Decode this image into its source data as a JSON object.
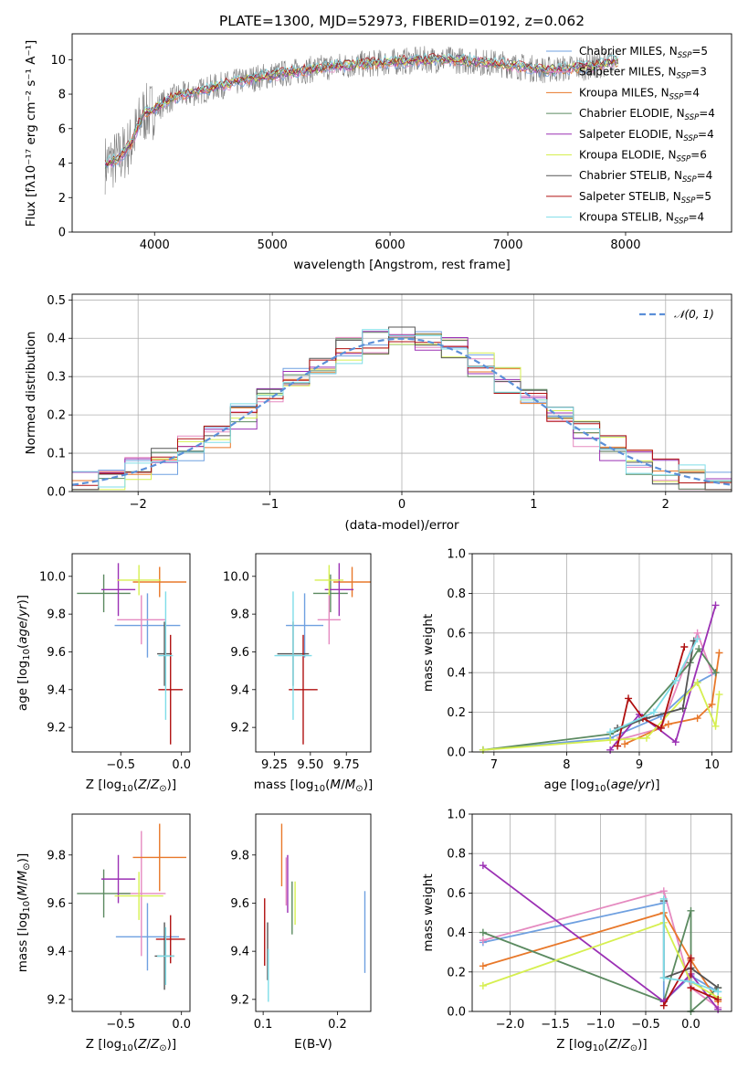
{
  "chart_data": [
    {
      "type": "line",
      "title": "PLATE=1300, MJD=52973, FIBERID=0192, z=0.062",
      "xlabel": "wavelength [Angstrom, rest frame]",
      "ylabel": "Flux [f$_\\lambda$10$^{-17}$ erg cm$^{-2}$ s$^{-1}$ A$^{-1}$]",
      "ylabel_text": "Flux [fλ10⁻¹⁷ erg cm⁻² s⁻¹ A⁻¹]",
      "xlim": [
        3300,
        8900
      ],
      "ylim": [
        0,
        11.5
      ],
      "xticks": [
        4000,
        5000,
        6000,
        7000,
        8000
      ],
      "yticks": [
        0,
        2,
        4,
        6,
        8,
        10
      ],
      "legend_position": "right",
      "legend": [
        {
          "name": "Chabrier MILES, N$_{SSP}$=5",
          "base": "Chabrier MILES, N",
          "sub": "SSP",
          "tail": "=5",
          "color": "#6fa0e0"
        },
        {
          "name": "Salpeter MILES, N$_{SSP}$=3",
          "base": "Salpeter MILES, N",
          "sub": "SSP",
          "tail": "=3",
          "color": "#e58ac0"
        },
        {
          "name": "Kroupa MILES, N$_{SSP}$=4",
          "base": "Kroupa MILES, N",
          "sub": "SSP",
          "tail": "=4",
          "color": "#e8782a"
        },
        {
          "name": "Chabrier ELODIE, N$_{SSP}$=4",
          "base": "Chabrier ELODIE, N",
          "sub": "SSP",
          "tail": "=4",
          "color": "#5b8a60"
        },
        {
          "name": "Salpeter ELODIE, N$_{SSP}$=4",
          "base": "Salpeter ELODIE, N",
          "sub": "SSP",
          "tail": "=4",
          "color": "#9b30b4"
        },
        {
          "name": "Kroupa ELODIE, N$_{SSP}$=6",
          "base": "Kroupa ELODIE, N",
          "sub": "SSP",
          "tail": "=6",
          "color": "#d6ef50"
        },
        {
          "name": "Chabrier STELIB, N$_{SSP}$=4",
          "base": "Chabrier STELIB, N",
          "sub": "SSP",
          "tail": "=4",
          "color": "#555555"
        },
        {
          "name": "Salpeter STELIB, N$_{SSP}$=5",
          "base": "Salpeter STELIB, N",
          "sub": "SSP",
          "tail": "=5",
          "color": "#b01010"
        },
        {
          "name": "Kroupa STELIB, N$_{SSP}$=4",
          "base": "Kroupa STELIB, N",
          "sub": "SSP",
          "tail": "=4",
          "color": "#7fdde8"
        }
      ],
      "spectrum_data": {
        "x": [
          3600,
          3700,
          3800,
          3900,
          4000,
          4100,
          4200,
          4300,
          4500,
          4700,
          4900,
          5100,
          5300,
          5500,
          5700,
          5900,
          6100,
          6300,
          6500,
          6700,
          6900,
          7100,
          7300,
          7500,
          7700,
          7900
        ],
        "y": [
          4.0,
          4.3,
          5.1,
          6.8,
          7.1,
          7.6,
          7.9,
          8.0,
          8.4,
          8.7,
          9.0,
          9.2,
          9.4,
          9.6,
          9.7,
          9.8,
          9.9,
          10.0,
          10.0,
          9.9,
          9.8,
          9.6,
          9.4,
          9.5,
          9.6,
          9.9
        ],
        "color": "#7f7f7f"
      }
    },
    {
      "type": "line",
      "xlabel": "(data-model)/error",
      "ylabel": "Normed distribution",
      "xlim": [
        -2.5,
        2.5
      ],
      "ylim": [
        0,
        0.515
      ],
      "xticks": [
        -2,
        -1,
        0,
        1,
        2
      ],
      "yticks": [
        0.0,
        0.1,
        0.2,
        0.3,
        0.4,
        0.5
      ],
      "grid": true,
      "legend_position": "top-right",
      "reference_series": {
        "name": "$\\mathcal{N}(0,1)$",
        "label_text": "𝒩(0, 1)",
        "color": "#5b8fd8",
        "style": "dashed"
      },
      "hist_bins": [
        -2.5,
        -2.3,
        -2.1,
        -1.9,
        -1.7,
        -1.5,
        -1.3,
        -1.1,
        -0.9,
        -0.7,
        -0.5,
        -0.3,
        -0.1,
        0.1,
        0.3,
        0.5,
        0.7,
        0.9,
        1.1,
        1.3,
        1.5,
        1.7,
        1.9,
        2.1,
        2.3,
        2.5
      ]
    },
    {
      "type": "scatter",
      "xlabel": "Z [log$_{10}$(Z/Z$_\\odot$)]",
      "ylabel": "age  [log$_{10}$(age/yr)]",
      "xlim": [
        -0.9,
        0.07
      ],
      "ylim": [
        9.07,
        10.12
      ],
      "xticks": [
        -0.5,
        0.0
      ],
      "xtick_labels": [
        "−0.5",
        "0.0"
      ],
      "yticks": [
        9.2,
        9.4,
        9.6,
        9.8,
        10.0
      ],
      "points": [
        {
          "x": -0.28,
          "y": 9.74,
          "xerr": 0.27,
          "yerr": 0.17,
          "color": "#6fa0e0"
        },
        {
          "x": -0.33,
          "y": 9.77,
          "xerr": 0.2,
          "yerr": 0.13,
          "color": "#e58ac0"
        },
        {
          "x": -0.18,
          "y": 9.97,
          "xerr": 0.22,
          "yerr": 0.08,
          "color": "#e8782a"
        },
        {
          "x": -0.64,
          "y": 9.91,
          "xerr": 0.22,
          "yerr": 0.1,
          "color": "#5b8a60"
        },
        {
          "x": -0.52,
          "y": 9.93,
          "xerr": 0.14,
          "yerr": 0.14,
          "color": "#9b30b4"
        },
        {
          "x": -0.35,
          "y": 9.98,
          "xerr": 0.18,
          "yerr": 0.08,
          "color": "#d6ef50"
        },
        {
          "x": -0.14,
          "y": 9.59,
          "xerr": 0.06,
          "yerr": 0.17,
          "color": "#555555"
        },
        {
          "x": -0.09,
          "y": 9.4,
          "xerr": 0.1,
          "yerr": 0.29,
          "color": "#b01010"
        },
        {
          "x": -0.13,
          "y": 9.58,
          "xerr": 0.06,
          "yerr": 0.34,
          "color": "#7fdde8"
        }
      ]
    },
    {
      "type": "scatter",
      "xlabel": "mass [log$_{10}$(M/M$_\\odot$)]",
      "ylabel": "",
      "xlim": [
        9.12,
        9.92
      ],
      "ylim": [
        9.07,
        10.12
      ],
      "xticks": [
        9.25,
        9.5,
        9.75
      ],
      "xtick_labels": [
        "9.25",
        "9.50",
        "9.75"
      ],
      "yticks": [
        9.2,
        9.4,
        9.6,
        9.8,
        10.0
      ],
      "points": [
        {
          "x": 9.46,
          "y": 9.74,
          "xerr": 0.13,
          "yerr": 0.17,
          "color": "#6fa0e0"
        },
        {
          "x": 9.63,
          "y": 9.77,
          "xerr": 0.08,
          "yerr": 0.13,
          "color": "#e58ac0"
        },
        {
          "x": 9.79,
          "y": 9.97,
          "xerr": 0.13,
          "yerr": 0.08,
          "color": "#e8782a"
        },
        {
          "x": 9.64,
          "y": 9.91,
          "xerr": 0.12,
          "yerr": 0.1,
          "color": "#5b8a60"
        },
        {
          "x": 9.7,
          "y": 9.93,
          "xerr": 0.1,
          "yerr": 0.14,
          "color": "#9b30b4"
        },
        {
          "x": 9.63,
          "y": 9.98,
          "xerr": 0.1,
          "yerr": 0.08,
          "color": "#d6ef50"
        },
        {
          "x": 9.38,
          "y": 9.59,
          "xerr": 0.11,
          "yerr": 0.17,
          "color": "#555555"
        },
        {
          "x": 9.45,
          "y": 9.4,
          "xerr": 0.1,
          "yerr": 0.29,
          "color": "#b01010"
        },
        {
          "x": 9.38,
          "y": 9.58,
          "xerr": 0.13,
          "yerr": 0.34,
          "color": "#7fdde8"
        }
      ]
    },
    {
      "type": "line",
      "xlabel": "age  [log$_{10}$(age/yr)]",
      "ylabel": "mass weight",
      "xlim": [
        6.7,
        10.27
      ],
      "ylim": [
        0.0,
        1.0
      ],
      "xticks": [
        7,
        8,
        9,
        10
      ],
      "yticks": [
        0.0,
        0.2,
        0.4,
        0.6,
        0.8,
        1.0
      ],
      "grid": true,
      "series": [
        {
          "color": "#6fa0e0",
          "points": [
            [
              6.85,
              0.01
            ],
            [
              8.6,
              0.07
            ],
            [
              9.3,
              0.18
            ],
            [
              9.8,
              0.35
            ],
            [
              10.05,
              0.4
            ]
          ]
        },
        {
          "color": "#e58ac0",
          "points": [
            [
              8.7,
              0.06
            ],
            [
              9.3,
              0.12
            ],
            [
              9.8,
              0.6
            ],
            [
              10.0,
              0.4
            ]
          ]
        },
        {
          "color": "#e8782a",
          "points": [
            [
              8.8,
              0.04
            ],
            [
              9.4,
              0.14
            ],
            [
              9.8,
              0.17
            ],
            [
              10.0,
              0.24
            ],
            [
              10.1,
              0.5
            ]
          ]
        },
        {
          "color": "#5b8a60",
          "points": [
            [
              6.85,
              0.01
            ],
            [
              8.6,
              0.09
            ],
            [
              9.0,
              0.16
            ],
            [
              9.7,
              0.45
            ],
            [
              9.82,
              0.52
            ],
            [
              10.05,
              0.4
            ]
          ]
        },
        {
          "color": "#9b30b4",
          "points": [
            [
              8.6,
              0.01
            ],
            [
              9.0,
              0.19
            ],
            [
              9.5,
              0.05
            ],
            [
              10.05,
              0.74
            ]
          ]
        },
        {
          "color": "#d6ef50",
          "points": [
            [
              6.85,
              0.01
            ],
            [
              8.6,
              0.06
            ],
            [
              9.1,
              0.07
            ],
            [
              9.8,
              0.35
            ],
            [
              10.05,
              0.13
            ],
            [
              10.1,
              0.29
            ]
          ]
        },
        {
          "color": "#555555",
          "points": [
            [
              8.7,
              0.12
            ],
            [
              9.1,
              0.17
            ],
            [
              9.6,
              0.22
            ],
            [
              9.75,
              0.56
            ]
          ]
        },
        {
          "color": "#b01010",
          "points": [
            [
              8.7,
              0.03
            ],
            [
              8.85,
              0.27
            ],
            [
              9.05,
              0.17
            ],
            [
              9.3,
              0.12
            ],
            [
              9.62,
              0.53
            ]
          ]
        },
        {
          "color": "#7fdde8",
          "points": [
            [
              8.6,
              0.1
            ],
            [
              9.2,
              0.2
            ],
            [
              9.5,
              0.36
            ],
            [
              9.8,
              0.57
            ]
          ]
        }
      ]
    },
    {
      "type": "scatter",
      "xlabel": "Z [log$_{10}$(Z/Z$_\\odot$)]",
      "ylabel": "mass [log$_{10}$(M/M$_\\odot$)]",
      "xlim": [
        -0.9,
        0.07
      ],
      "ylim": [
        9.15,
        9.97
      ],
      "xticks": [
        -0.5,
        0.0
      ],
      "xtick_labels": [
        "−0.5",
        "0.0"
      ],
      "yticks": [
        9.2,
        9.4,
        9.6,
        9.8
      ],
      "points": [
        {
          "x": -0.28,
          "y": 9.46,
          "xerr": 0.26,
          "yerr": 0.14,
          "color": "#6fa0e0"
        },
        {
          "x": -0.33,
          "y": 9.64,
          "xerr": 0.2,
          "yerr": 0.26,
          "color": "#e58ac0"
        },
        {
          "x": -0.18,
          "y": 9.79,
          "xerr": 0.22,
          "yerr": 0.14,
          "color": "#e8782a"
        },
        {
          "x": -0.64,
          "y": 9.64,
          "xerr": 0.22,
          "yerr": 0.1,
          "color": "#5b8a60"
        },
        {
          "x": -0.52,
          "y": 9.7,
          "xerr": 0.14,
          "yerr": 0.1,
          "color": "#9b30b4"
        },
        {
          "x": -0.35,
          "y": 9.63,
          "xerr": 0.2,
          "yerr": 0.1,
          "color": "#d6ef50"
        },
        {
          "x": -0.14,
          "y": 9.38,
          "xerr": 0.08,
          "yerr": 0.14,
          "color": "#555555"
        },
        {
          "x": -0.09,
          "y": 9.45,
          "xerr": 0.12,
          "yerr": 0.1,
          "color": "#b01010"
        },
        {
          "x": -0.13,
          "y": 9.38,
          "xerr": 0.07,
          "yerr": 0.12,
          "color": "#7fdde8"
        }
      ]
    },
    {
      "type": "scatter",
      "xlabel": "E(B-V)",
      "ylabel": "",
      "xlim": [
        0.09,
        0.245
      ],
      "ylim": [
        9.15,
        9.97
      ],
      "xticks": [
        0.1,
        0.2
      ],
      "xtick_labels": [
        "0.1",
        "0.2"
      ],
      "yticks": [
        9.2,
        9.4,
        9.6,
        9.8
      ],
      "points": [
        {
          "x": 0.237,
          "y": 9.48,
          "yerr": 0.17,
          "color": "#6fa0e0"
        },
        {
          "x": 0.131,
          "y": 9.69,
          "yerr": 0.1,
          "color": "#e58ac0"
        },
        {
          "x": 0.125,
          "y": 9.8,
          "yerr": 0.13,
          "color": "#e8782a"
        },
        {
          "x": 0.139,
          "y": 9.58,
          "yerr": 0.11,
          "color": "#5b8a60"
        },
        {
          "x": 0.133,
          "y": 9.68,
          "yerr": 0.12,
          "color": "#9b30b4"
        },
        {
          "x": 0.143,
          "y": 9.6,
          "yerr": 0.09,
          "color": "#d6ef50"
        },
        {
          "x": 0.106,
          "y": 9.4,
          "yerr": 0.12,
          "color": "#555555"
        },
        {
          "x": 0.102,
          "y": 9.48,
          "yerr": 0.14,
          "color": "#b01010"
        },
        {
          "x": 0.107,
          "y": 9.3,
          "yerr": 0.11,
          "color": "#7fdde8"
        }
      ]
    },
    {
      "type": "line",
      "xlabel": "Z [log$_{10}$(Z/Z$_\\odot$)]",
      "ylabel": "mass weight",
      "xlim": [
        -2.42,
        0.45
      ],
      "ylim": [
        0.0,
        1.0
      ],
      "xticks": [
        -2.0,
        -1.5,
        -1.0,
        -0.5,
        0.0
      ],
      "xtick_labels": [
        "−2.0",
        "−1.5",
        "−1.0",
        "−0.5",
        "0.0"
      ],
      "yticks": [
        0.0,
        0.2,
        0.4,
        0.6,
        0.8,
        1.0
      ],
      "grid": true,
      "series": [
        {
          "color": "#6fa0e0",
          "points": [
            [
              -2.3,
              0.35
            ],
            [
              -0.3,
              0.55
            ],
            [
              -0.3,
              0.05
            ],
            [
              0.0,
              0.18
            ],
            [
              0.3,
              0.1
            ]
          ]
        },
        {
          "color": "#e58ac0",
          "points": [
            [
              -2.3,
              0.36
            ],
            [
              -0.3,
              0.61
            ],
            [
              0.0,
              0.12
            ],
            [
              0.3,
              0.02
            ]
          ]
        },
        {
          "color": "#e8782a",
          "points": [
            [
              -2.3,
              0.23
            ],
            [
              -0.3,
              0.5
            ],
            [
              0.0,
              0.26
            ],
            [
              0.3,
              0.05
            ]
          ]
        },
        {
          "color": "#5b8a60",
          "points": [
            [
              -2.3,
              0.4
            ],
            [
              -0.3,
              0.05
            ],
            [
              0.0,
              0.51
            ],
            [
              0.0,
              0.0
            ],
            [
              0.3,
              0.12
            ]
          ]
        },
        {
          "color": "#9b30b4",
          "points": [
            [
              -2.3,
              0.74
            ],
            [
              -0.3,
              0.05
            ],
            [
              0.0,
              0.19
            ],
            [
              0.3,
              0.01
            ]
          ]
        },
        {
          "color": "#d6ef50",
          "points": [
            [
              -2.3,
              0.13
            ],
            [
              -0.3,
              0.45
            ],
            [
              0.0,
              0.15
            ],
            [
              0.3,
              0.07
            ]
          ]
        },
        {
          "color": "#555555",
          "points": [
            [
              -0.3,
              0.56
            ],
            [
              -0.3,
              0.17
            ],
            [
              0.0,
              0.22
            ],
            [
              0.3,
              0.12
            ]
          ]
        },
        {
          "color": "#b01010",
          "points": [
            [
              -0.3,
              0.03
            ],
            [
              0.0,
              0.27
            ],
            [
              0.0,
              0.12
            ],
            [
              0.3,
              0.06
            ]
          ]
        },
        {
          "color": "#7fdde8",
          "points": [
            [
              -0.3,
              0.57
            ],
            [
              -0.3,
              0.17
            ],
            [
              0.0,
              0.15
            ],
            [
              0.3,
              0.1
            ]
          ]
        }
      ]
    }
  ]
}
